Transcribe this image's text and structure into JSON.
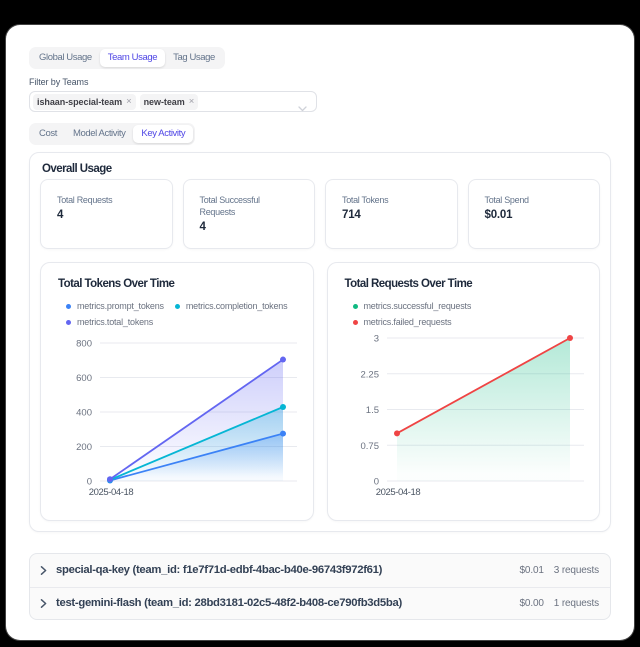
{
  "colors": {
    "backdrop": "#000000",
    "surface": "#ffffff",
    "accent": "#4f46e5",
    "text_strong": "#1e293b",
    "text_muted": "#64748b",
    "border": "#e7e9ee"
  },
  "usage_tabs": {
    "items": [
      {
        "label": "Global Usage",
        "active": false
      },
      {
        "label": "Team Usage",
        "active": true
      },
      {
        "label": "Tag Usage",
        "active": false
      }
    ]
  },
  "filter": {
    "label": "Filter by Teams",
    "chips": [
      {
        "label": "ishaan-special-team",
        "remove_icon": "×"
      },
      {
        "label": "new-team",
        "remove_icon": "×"
      }
    ]
  },
  "activity_tabs": {
    "items": [
      {
        "label": "Cost",
        "active": false
      },
      {
        "label": "Model Activity",
        "active": false
      },
      {
        "label": "Key Activity",
        "active": true
      }
    ]
  },
  "overall": {
    "title": "Overall Usage",
    "stats": [
      {
        "label": "Total Requests",
        "value": "4"
      },
      {
        "label": "Total Successful Requests",
        "value": "4"
      },
      {
        "label": "Total Tokens",
        "value": "714"
      },
      {
        "label": "Total Spend",
        "value": "$0.01"
      }
    ]
  },
  "chart_data": [
    {
      "type": "area",
      "title": "Total Tokens Over Time",
      "x_tick_labels": [
        "2025-04-18"
      ],
      "series": [
        {
          "name": "metrics.prompt_tokens",
          "color": "#3b82f6",
          "values": [
            3,
            275
          ]
        },
        {
          "name": "metrics.completion_tokens",
          "color": "#06b6d4",
          "values": [
            7,
            429
          ]
        },
        {
          "name": "metrics.total_tokens",
          "color": "#6366f1",
          "values": [
            10,
            704
          ]
        }
      ],
      "yticks": [
        0,
        200,
        400,
        600,
        800
      ],
      "ylim": [
        0,
        800
      ],
      "grid": true,
      "legend_position": "top"
    },
    {
      "type": "area",
      "title": "Total Requests Over Time",
      "x_tick_labels": [
        "2025-04-18"
      ],
      "series": [
        {
          "name": "metrics.successful_requests",
          "color": "#10b981",
          "values": [
            1,
            3
          ],
          "area": true,
          "covered_by_next_series": true
        },
        {
          "name": "metrics.failed_requests",
          "color": "#ef4444",
          "values": [
            1,
            3
          ],
          "area": false
        }
      ],
      "yticks": [
        0,
        0.75,
        1.5,
        2.25,
        3
      ],
      "ylim": [
        0,
        3
      ],
      "grid": true,
      "legend_position": "top"
    }
  ],
  "keys": {
    "rows": [
      {
        "name": "special-qa-key (team_id: f1e7f71d-edbf-4bac-b40e-96743f972f61)",
        "spend": "$0.01",
        "requests": "3 requests"
      },
      {
        "name": "test-gemini-flash (team_id: 28bd3181-02c5-48f2-b408-ce790fb3d5ba)",
        "spend": "$0.00",
        "requests": "1 requests"
      }
    ]
  }
}
